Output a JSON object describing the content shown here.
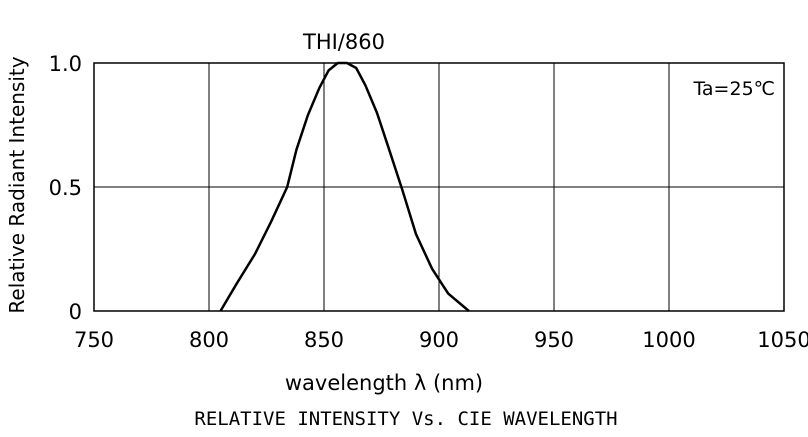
{
  "chart_data": {
    "type": "line",
    "title": "THI/860",
    "caption": "RELATIVE INTENSITY Vs. CIE WAVELENGTH",
    "xlabel": "wavelength λ (nm)",
    "ylabel": "Relative Radiant Intensity",
    "annotation": "Ta=25℃",
    "xlim": [
      750,
      1050
    ],
    "ylim": [
      0,
      1.0
    ],
    "x_ticks": [
      750,
      800,
      850,
      900,
      950,
      1000,
      1050
    ],
    "x_tick_labels": [
      "750",
      "800",
      "850",
      "900",
      "950",
      "1000",
      "1050"
    ],
    "y_ticks": [
      0,
      0.5,
      1.0
    ],
    "y_tick_labels": [
      "0",
      "0.5",
      "1.0"
    ],
    "grid": true,
    "series": [
      {
        "x": [
          805,
          812,
          820,
          827,
          834,
          838,
          843,
          848,
          852,
          856,
          860,
          864,
          868,
          873,
          878,
          884,
          890,
          897,
          904,
          913
        ],
        "y": [
          0.0,
          0.11,
          0.23,
          0.36,
          0.5,
          0.65,
          0.79,
          0.9,
          0.97,
          1.0,
          1.0,
          0.98,
          0.91,
          0.8,
          0.66,
          0.49,
          0.31,
          0.17,
          0.07,
          0.0
        ]
      }
    ]
  }
}
